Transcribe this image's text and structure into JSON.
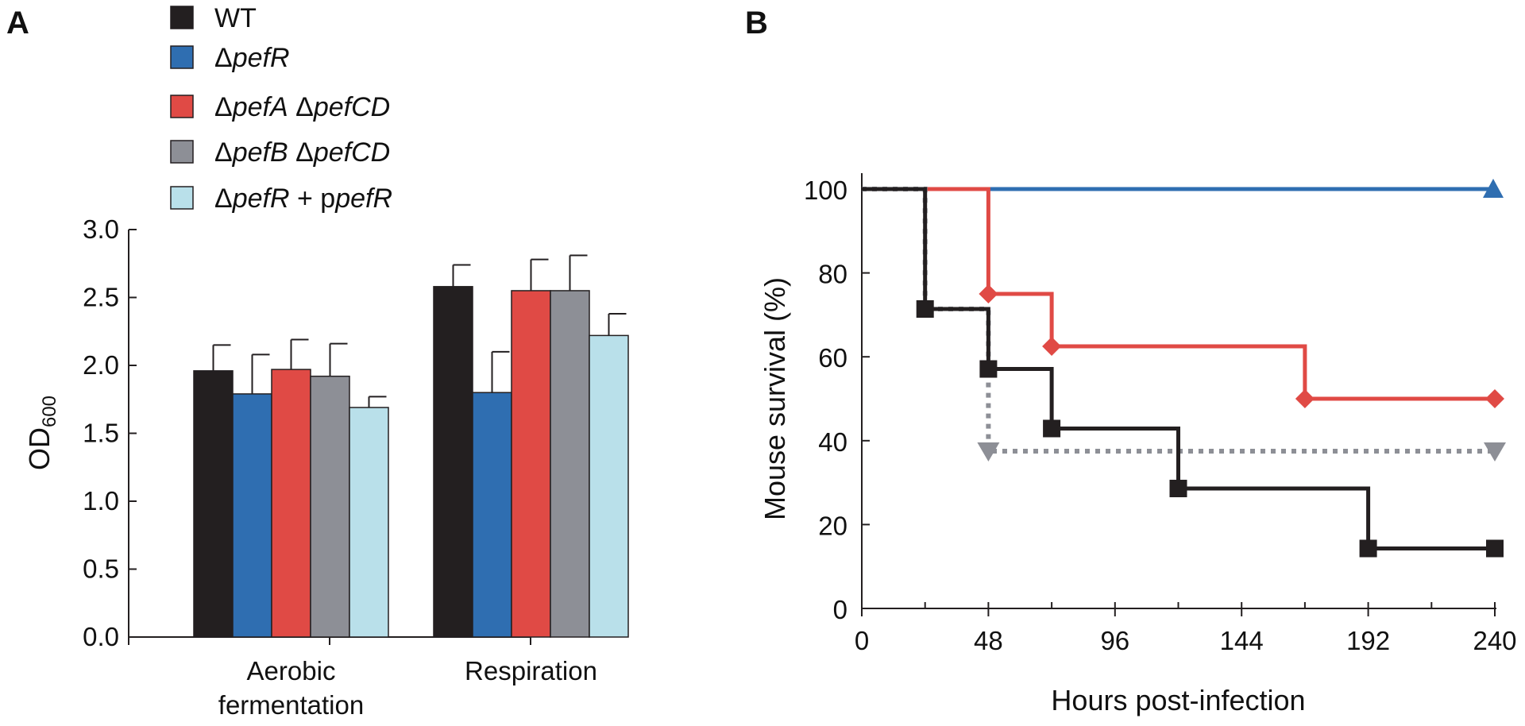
{
  "panels": {
    "a_label": "A",
    "b_label": "B"
  },
  "legend": [
    {
      "parts": [
        {
          "t": "WT",
          "i": false
        }
      ],
      "color": "#231f20"
    },
    {
      "parts": [
        {
          "t": "Δ",
          "i": false
        },
        {
          "t": "pefR",
          "i": true
        }
      ],
      "color": "#2f6eb1"
    },
    {
      "parts": [
        {
          "t": "Δ",
          "i": false
        },
        {
          "t": "pefA",
          "i": true
        },
        {
          "t": " Δ",
          "i": false
        },
        {
          "t": "pefCD",
          "i": true
        }
      ],
      "color": "#e04a45"
    },
    {
      "parts": [
        {
          "t": "Δ",
          "i": false
        },
        {
          "t": "pefB",
          "i": true
        },
        {
          "t": " Δ",
          "i": false
        },
        {
          "t": "pefCD",
          "i": true
        }
      ],
      "color": "#8d8f96"
    },
    {
      "parts": [
        {
          "t": "Δ",
          "i": false
        },
        {
          "t": "pefR",
          "i": true
        },
        {
          "t": " + p",
          "i": false
        },
        {
          "t": "pefR",
          "i": true
        }
      ],
      "color": "#b9e0ea"
    }
  ],
  "chart_data": [
    {
      "type": "bar",
      "panel": "A",
      "ylabel_main": "OD",
      "ylabel_sub": "600",
      "ylim": [
        0,
        3.0
      ],
      "yticks": [
        "0.0",
        "0.5",
        "1.0",
        "1.5",
        "2.0",
        "2.5",
        "3.0"
      ],
      "categories": [
        {
          "lines": [
            "Aerobic",
            "fermentation"
          ]
        },
        {
          "lines": [
            "Respiration"
          ]
        }
      ],
      "series": [
        {
          "name": "WT",
          "color": "#231f20",
          "values": [
            1.96,
            2.58
          ],
          "errors": [
            0.19,
            0.16
          ]
        },
        {
          "name": "ΔpefR",
          "color": "#2f6eb1",
          "values": [
            1.79,
            1.8
          ],
          "errors": [
            0.29,
            0.3
          ]
        },
        {
          "name": "ΔpefA ΔpefCD",
          "color": "#e04a45",
          "values": [
            1.97,
            2.55
          ],
          "errors": [
            0.22,
            0.23
          ]
        },
        {
          "name": "ΔpefB ΔpefCD",
          "color": "#8d8f96",
          "values": [
            1.92,
            2.55
          ],
          "errors": [
            0.24,
            0.26
          ]
        },
        {
          "name": "ΔpefR + ppefR",
          "color": "#b9e0ea",
          "values": [
            1.69,
            2.22
          ],
          "errors": [
            0.08,
            0.16
          ]
        }
      ]
    },
    {
      "type": "line",
      "panel": "B",
      "xlabel": "Hours post-infection",
      "ylabel": "Mouse survival (%)",
      "xlim": [
        0,
        240
      ],
      "ylim": [
        0,
        100
      ],
      "xticks": [
        0,
        48,
        96,
        144,
        192,
        240
      ],
      "yticks": [
        0,
        20,
        40,
        60,
        80,
        100
      ],
      "series": [
        {
          "name": "ΔpefR",
          "color": "#2f6eb1",
          "style": "solid",
          "marker": "triangle-up",
          "points": [
            [
              0,
              100
            ],
            [
              240,
              100
            ]
          ],
          "markers": [
            [
              240,
              100
            ]
          ]
        },
        {
          "name": "ΔpefA ΔpefCD",
          "color": "#e04a45",
          "style": "solid",
          "marker": "diamond",
          "points": [
            [
              0,
              100
            ],
            [
              48,
              100
            ],
            [
              48,
              75
            ],
            [
              72,
              75
            ],
            [
              72,
              62.5
            ],
            [
              168,
              62.5
            ],
            [
              168,
              50
            ],
            [
              240,
              50
            ]
          ],
          "markers": [
            [
              48,
              75
            ],
            [
              72,
              62.5
            ],
            [
              168,
              50
            ],
            [
              240,
              50
            ]
          ]
        },
        {
          "name": "ΔpefB ΔpefCD",
          "color": "#8d8f96",
          "style": "dotted",
          "marker": "triangle-down",
          "points": [
            [
              0,
              100
            ],
            [
              24,
              100
            ],
            [
              24,
              71.4
            ],
            [
              48,
              71.4
            ],
            [
              48,
              37.5
            ],
            [
              240,
              37.5
            ]
          ],
          "markers": [
            [
              48,
              37.5
            ],
            [
              240,
              37.5
            ]
          ]
        },
        {
          "name": "WT",
          "color": "#231f20",
          "style": "solid",
          "marker": "square",
          "points": [
            [
              0,
              100
            ],
            [
              24,
              100
            ],
            [
              24,
              71.4
            ],
            [
              48,
              71.4
            ],
            [
              48,
              57.1
            ],
            [
              72,
              57.1
            ],
            [
              72,
              42.9
            ],
            [
              120,
              42.9
            ],
            [
              120,
              28.6
            ],
            [
              192,
              28.6
            ],
            [
              192,
              14.3
            ],
            [
              240,
              14.3
            ]
          ],
          "markers": [
            [
              24,
              71.4
            ],
            [
              48,
              57.1
            ],
            [
              72,
              42.9
            ],
            [
              120,
              28.6
            ],
            [
              192,
              14.3
            ],
            [
              240,
              14.3
            ]
          ]
        }
      ]
    }
  ]
}
